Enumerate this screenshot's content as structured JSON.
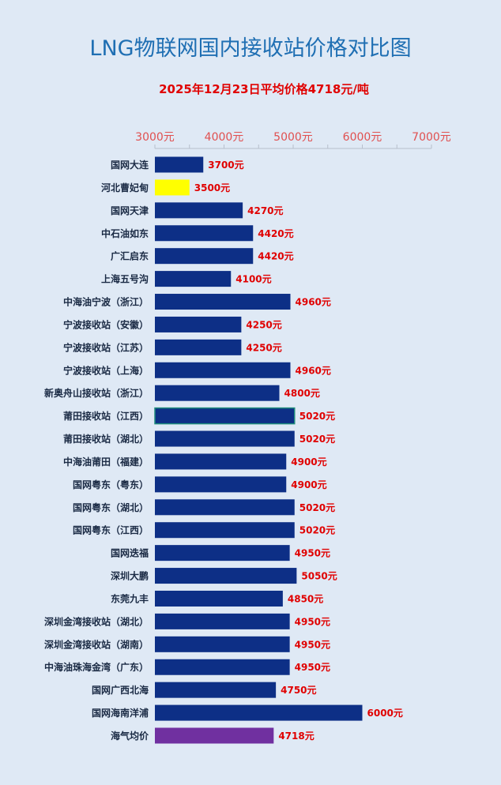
{
  "chart_data": {
    "type": "bar",
    "orientation": "horizontal",
    "title": "LNG物联网国内接收站价格对比图",
    "subtitle": "2025年12月23日平均价格4718元/吨",
    "value_unit": "元",
    "xlim": [
      3000,
      7000
    ],
    "ticks": [
      3000,
      4000,
      5000,
      6000,
      7000
    ],
    "tick_labels": [
      "3000元",
      "4000元",
      "5000元",
      "6000元",
      "7000元"
    ],
    "categories": [
      "国网大连",
      "河北曹妃甸",
      "国网天津",
      "中石油如东",
      "广汇启东",
      "上海五号沟",
      "中海油宁波（浙江）",
      "宁波接收站（安徽）",
      "宁波接收站（江苏）",
      "宁波接收站（上海）",
      "新奥舟山接收站（浙江）",
      "莆田接收站（江西）",
      "莆田接收站（湖北）",
      "中海油莆田（福建）",
      "国网粤东（粤东）",
      "国网粤东（湖北）",
      "国网粤东（江西）",
      "国网迭福",
      "深圳大鹏",
      "东莞九丰",
      "深圳金湾接收站（湖北）",
      "深圳金湾接收站（湖南）",
      "中海油珠海金湾（广东）",
      "国网广西北海",
      "国网海南洋浦",
      "海气均价"
    ],
    "values": [
      3700,
      3500,
      4270,
      4420,
      4420,
      4100,
      4960,
      4250,
      4250,
      4960,
      4800,
      5020,
      5020,
      4900,
      4900,
      5020,
      5020,
      4950,
      5050,
      4850,
      4950,
      4950,
      4950,
      4750,
      6000,
      4718
    ],
    "value_labels": [
      "3700元",
      "3500元",
      "4270元",
      "4420元",
      "4420元",
      "4100元",
      "4960元",
      "4250元",
      "4250元",
      "4960元",
      "4800元",
      "5020元",
      "5020元",
      "4900元",
      "4900元",
      "5020元",
      "5020元",
      "4950元",
      "5050元",
      "4850元",
      "4950元",
      "4950元",
      "4950元",
      "4750元",
      "6000元",
      "4718元"
    ],
    "colors": {
      "default": "#0d2f86",
      "highlight": "#ffff00",
      "average": "#7030a0",
      "outlined_stroke": "#1e8c7c"
    },
    "highlight_index": 1,
    "average_index": 25,
    "outlined_index": 11,
    "grid": false,
    "legend": "none"
  }
}
